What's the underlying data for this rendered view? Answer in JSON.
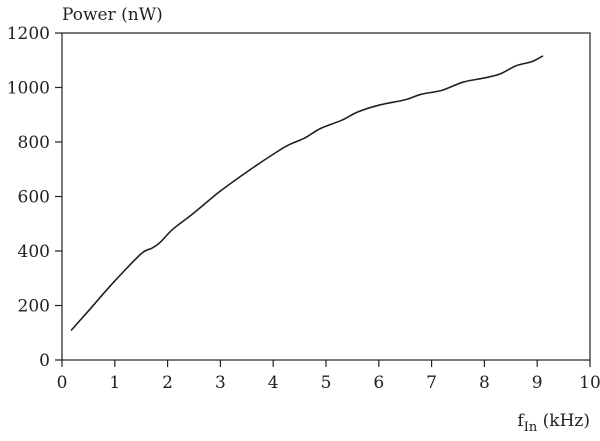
{
  "chart_data": {
    "type": "line",
    "title": "",
    "ylabel": "Power (nW)",
    "xlabel": {
      "base": "f",
      "subscript": "In",
      "suffix": " (kHz)"
    },
    "xlim": [
      0,
      10
    ],
    "ylim": [
      0,
      1200
    ],
    "x_ticks": [
      0,
      1,
      2,
      3,
      4,
      5,
      6,
      7,
      8,
      9,
      10
    ],
    "y_ticks": [
      0,
      200,
      400,
      600,
      800,
      1000,
      1200
    ],
    "grid": false,
    "legend": "none",
    "series": [
      {
        "color": "#231f20",
        "points": [
          [
            0.18,
            110
          ],
          [
            0.5,
            180
          ],
          [
            1.0,
            290
          ],
          [
            1.5,
            390
          ],
          [
            1.7,
            410
          ],
          [
            1.85,
            430
          ],
          [
            2.1,
            480
          ],
          [
            2.5,
            540
          ],
          [
            3.0,
            620
          ],
          [
            3.5,
            690
          ],
          [
            4.0,
            755
          ],
          [
            4.3,
            790
          ],
          [
            4.6,
            815
          ],
          [
            4.9,
            850
          ],
          [
            5.3,
            880
          ],
          [
            5.6,
            910
          ],
          [
            6.0,
            935
          ],
          [
            6.5,
            955
          ],
          [
            6.8,
            975
          ],
          [
            7.2,
            990
          ],
          [
            7.6,
            1020
          ],
          [
            8.0,
            1035
          ],
          [
            8.3,
            1050
          ],
          [
            8.6,
            1080
          ],
          [
            8.9,
            1095
          ],
          [
            9.1,
            1115
          ]
        ]
      }
    ]
  }
}
